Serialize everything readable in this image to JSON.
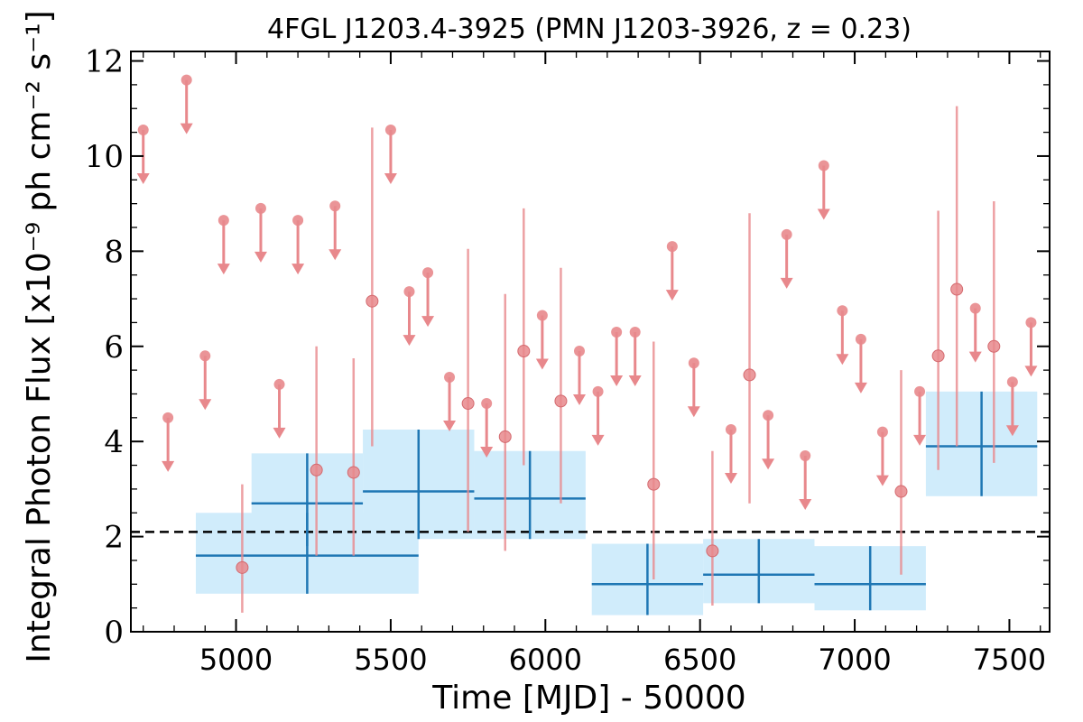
{
  "chart_data": {
    "type": "scatter",
    "title": "4FGL J1203.4-3925 (PMN J1203-3926, z = 0.23)",
    "xlabel": "Time [MJD] - 50000",
    "ylabel": "Integral Photon Flux [x10⁻⁹ ph cm⁻² s⁻¹]",
    "xlim": [
      4660,
      7630
    ],
    "ylim": [
      0,
      12.2
    ],
    "x_ticks": [
      5000,
      5500,
      6000,
      6500,
      7000,
      7500
    ],
    "y_ticks": [
      0,
      2,
      4,
      6,
      8,
      10,
      12
    ],
    "grid": false,
    "reference_line": {
      "y": 2.1,
      "style": "dashed",
      "color": "#000000"
    },
    "series": [
      {
        "kind": "binned",
        "color": "#1f77b4",
        "band_color": "#d0ecfb",
        "points": [
          {
            "x": 5230,
            "x_err": 360,
            "y": 1.6,
            "y_lo": 0.8,
            "y_hi": 2.5
          },
          {
            "x": 5230,
            "x_err": 180,
            "y": 2.7,
            "y_lo": 1.8,
            "y_hi": 3.75
          },
          {
            "x": 5590,
            "x_err": 180,
            "y": 2.95,
            "y_lo": 1.95,
            "y_hi": 4.25
          },
          {
            "x": 5950,
            "x_err": 180,
            "y": 2.8,
            "y_lo": 1.95,
            "y_hi": 3.8
          },
          {
            "x": 6330,
            "x_err": 180,
            "y": 1.0,
            "y_lo": 0.35,
            "y_hi": 1.85
          },
          {
            "x": 6690,
            "x_err": 180,
            "y": 1.2,
            "y_lo": 0.6,
            "y_hi": 1.95
          },
          {
            "x": 7050,
            "x_err": 180,
            "y": 1.0,
            "y_lo": 0.45,
            "y_hi": 1.8
          },
          {
            "x": 7410,
            "x_err": 180,
            "y": 3.9,
            "y_lo": 2.85,
            "y_hi": 5.05
          }
        ]
      },
      {
        "kind": "detections",
        "color": "#e8888c",
        "points": [
          {
            "x": 5020,
            "y": 1.35,
            "y_lo": 0.4,
            "y_hi": 3.1
          },
          {
            "x": 5260,
            "y": 3.4,
            "y_lo": 1.6,
            "y_hi": 6.0
          },
          {
            "x": 5380,
            "y": 3.35,
            "y_lo": 1.6,
            "y_hi": 5.75
          },
          {
            "x": 5440,
            "y": 6.95,
            "y_lo": 3.9,
            "y_hi": 10.6
          },
          {
            "x": 5750,
            "y": 4.8,
            "y_lo": 2.1,
            "y_hi": 8.05
          },
          {
            "x": 5870,
            "y": 4.1,
            "y_lo": 1.7,
            "y_hi": 7.1
          },
          {
            "x": 5930,
            "y": 5.9,
            "y_lo": 3.5,
            "y_hi": 8.9
          },
          {
            "x": 6050,
            "y": 4.85,
            "y_lo": 2.7,
            "y_hi": 7.65
          },
          {
            "x": 6350,
            "y": 3.1,
            "y_lo": 1.1,
            "y_hi": 6.1
          },
          {
            "x": 6540,
            "y": 1.7,
            "y_lo": 0.55,
            "y_hi": 3.8
          },
          {
            "x": 6660,
            "y": 5.4,
            "y_lo": 2.7,
            "y_hi": 8.8
          },
          {
            "x": 7150,
            "y": 2.95,
            "y_lo": 1.2,
            "y_hi": 5.5
          },
          {
            "x": 7270,
            "y": 5.8,
            "y_lo": 3.4,
            "y_hi": 8.85
          },
          {
            "x": 7330,
            "y": 7.2,
            "y_lo": 3.9,
            "y_hi": 11.05
          },
          {
            "x": 7450,
            "y": 6.0,
            "y_lo": 3.55,
            "y_hi": 9.05
          }
        ]
      },
      {
        "kind": "upper_limits",
        "color": "#e8888c",
        "points": [
          {
            "x": 4700,
            "y": 10.55
          },
          {
            "x": 4780,
            "y": 4.5
          },
          {
            "x": 4840,
            "y": 11.6
          },
          {
            "x": 4900,
            "y": 5.8
          },
          {
            "x": 4960,
            "y": 8.65
          },
          {
            "x": 5080,
            "y": 8.9
          },
          {
            "x": 5140,
            "y": 5.2
          },
          {
            "x": 5200,
            "y": 8.65
          },
          {
            "x": 5320,
            "y": 8.95
          },
          {
            "x": 5500,
            "y": 10.55
          },
          {
            "x": 5560,
            "y": 7.15
          },
          {
            "x": 5620,
            "y": 7.55
          },
          {
            "x": 5690,
            "y": 5.35
          },
          {
            "x": 5810,
            "y": 4.8
          },
          {
            "x": 5990,
            "y": 6.65
          },
          {
            "x": 6110,
            "y": 5.9
          },
          {
            "x": 6170,
            "y": 5.05
          },
          {
            "x": 6230,
            "y": 6.3
          },
          {
            "x": 6290,
            "y": 6.3
          },
          {
            "x": 6410,
            "y": 8.1
          },
          {
            "x": 6480,
            "y": 5.65
          },
          {
            "x": 6600,
            "y": 4.25
          },
          {
            "x": 6720,
            "y": 4.55
          },
          {
            "x": 6780,
            "y": 8.35
          },
          {
            "x": 6840,
            "y": 3.7
          },
          {
            "x": 6900,
            "y": 9.8
          },
          {
            "x": 6960,
            "y": 6.75
          },
          {
            "x": 7020,
            "y": 6.15
          },
          {
            "x": 7090,
            "y": 4.2
          },
          {
            "x": 7210,
            "y": 5.05
          },
          {
            "x": 7390,
            "y": 6.8
          },
          {
            "x": 7510,
            "y": 5.25
          },
          {
            "x": 7570,
            "y": 6.5
          }
        ]
      }
    ]
  }
}
